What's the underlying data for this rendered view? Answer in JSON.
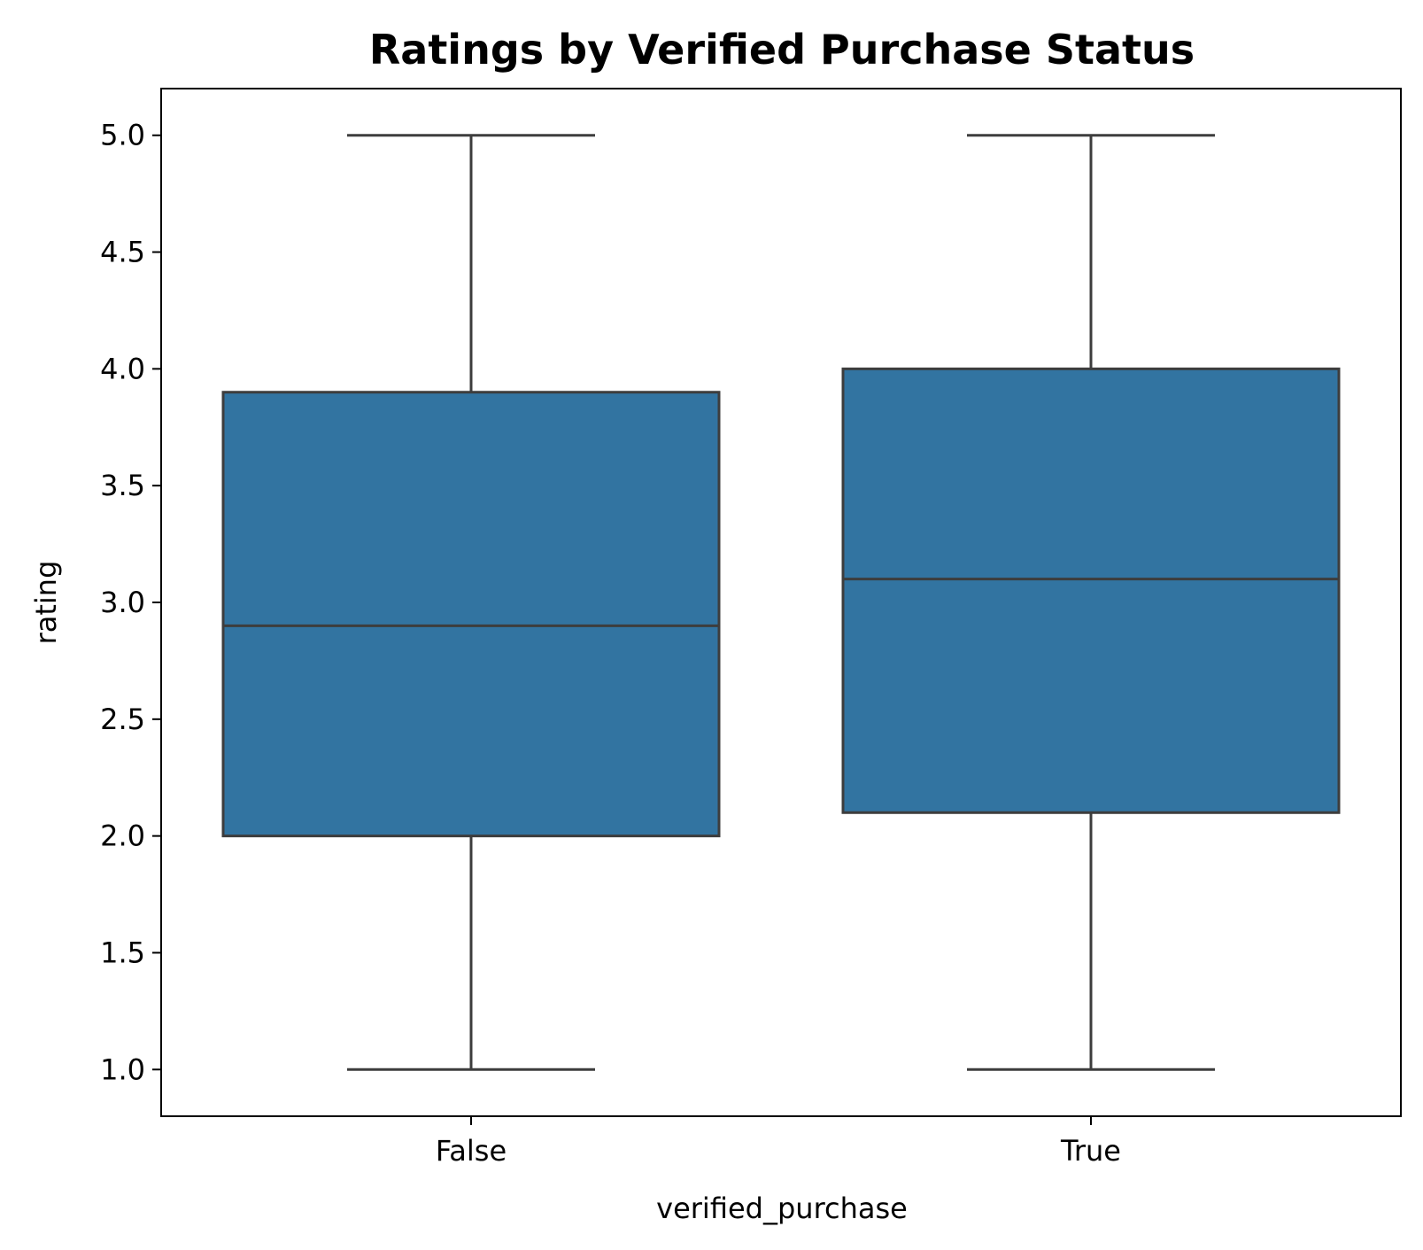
{
  "chart_data": {
    "type": "box",
    "title": "Ratings by Verified Purchase Status",
    "xlabel": "verified_purchase",
    "ylabel": "rating",
    "categories": [
      "False",
      "True"
    ],
    "boxes": [
      {
        "category": "False",
        "whisker_low": 1.0,
        "q1": 2.0,
        "median": 2.9,
        "q3": 3.9,
        "whisker_high": 5.0
      },
      {
        "category": "True",
        "whisker_low": 1.0,
        "q1": 2.1,
        "median": 3.1,
        "q3": 4.0,
        "whisker_high": 5.0
      }
    ],
    "ylim": [
      0.8,
      5.2
    ],
    "yticks": [
      1.0,
      1.5,
      2.0,
      2.5,
      3.0,
      3.5,
      4.0,
      4.5,
      5.0
    ],
    "ytick_labels": [
      "1.0",
      "1.5",
      "2.0",
      "2.5",
      "3.0",
      "3.5",
      "4.0",
      "4.5",
      "5.0"
    ],
    "grid": false,
    "colors": {
      "box_fill": "#3274a1",
      "box_edge": "#3d3d3d",
      "axes": "#000000",
      "background": "#ffffff"
    }
  }
}
